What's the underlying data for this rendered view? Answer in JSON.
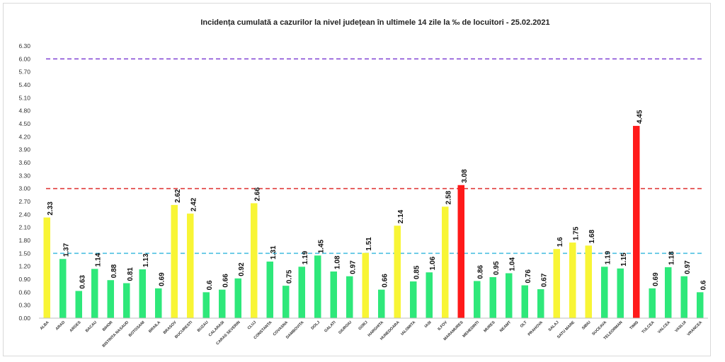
{
  "chart_data": {
    "type": "bar",
    "title": "Incidența cumulată a cazurilor la nivel județean în ultimele 14 zile   la ‰ de locuitori  - 25.02.2021",
    "xlabel": "",
    "ylabel": "",
    "ylim": [
      0,
      6.3
    ],
    "yticks": [
      "0.00",
      "0.30",
      "0.60",
      "0.90",
      "1.20",
      "1.50",
      "1.80",
      "2.10",
      "2.40",
      "2.70",
      "3.00",
      "3.30",
      "3.60",
      "3.90",
      "4.20",
      "4.50",
      "4.80",
      "5.10",
      "5.40",
      "5.70",
      "6.00",
      "6.30"
    ],
    "grid": false,
    "legend": "none",
    "categories": [
      "ALBA",
      "ARAD",
      "ARGES",
      "BACAU",
      "BIHOR",
      "BISTRITA NASAUD",
      "BOTOSANI",
      "BRAILA",
      "BRASOV",
      "BUCURESTI",
      "BUZAU",
      "CALARASI",
      "CARAS SEVERIN",
      "CLUJ",
      "CONSTANTA",
      "COVASNA",
      "DAMBOVITA",
      "DOLJ",
      "GALATI",
      "GIURGIU",
      "GORJ",
      "HARGHITA",
      "HUNEDOARA",
      "IALOMITA",
      "IASI",
      "ILFOV",
      "MARAMURES",
      "MEHEDINTI",
      "MURES",
      "NEAMT",
      "OLT",
      "PRAHOVA",
      "SALAJ",
      "SATU MARE",
      "SIBIU",
      "SUCEAVA",
      "TELEORMAN",
      "TIMIS",
      "TULCEA",
      "VALCEA",
      "VASLUI",
      "VRANCEA"
    ],
    "values": [
      2.33,
      1.37,
      0.63,
      1.14,
      0.88,
      0.81,
      1.13,
      0.69,
      2.62,
      2.42,
      0.6,
      0.66,
      0.92,
      2.66,
      1.31,
      0.75,
      1.19,
      1.45,
      1.08,
      0.97,
      1.51,
      0.66,
      2.14,
      0.85,
      1.06,
      2.58,
      3.08,
      0.86,
      0.95,
      1.04,
      0.76,
      0.67,
      1.6,
      1.75,
      1.68,
      1.19,
      1.15,
      4.45,
      0.69,
      1.18,
      0.97,
      0.6
    ],
    "value_labels": [
      "2.33",
      "1.37",
      "0.63",
      "1.14",
      "0.88",
      "0.81",
      "1.13",
      "0.69",
      "2.62",
      "2.42",
      "0.6",
      "0.66",
      "0.92",
      "2.66",
      "1.31",
      "0.75",
      "1.19",
      "1.45",
      "1.08",
      "0.97",
      "1.51",
      "0.66",
      "2.14",
      "0.85",
      "1.06",
      "2.58",
      "3.08",
      "0.86",
      "0.95",
      "1.04",
      "0.76",
      "0.67",
      "1.6",
      "1.75",
      "1.68",
      "1.19",
      "1.15",
      "4.45",
      "0.69",
      "1.18",
      "0.97",
      "0.6"
    ],
    "thresholds": [
      {
        "value": 1.5,
        "color": "#4bbfe0"
      },
      {
        "value": 3.0,
        "color": "#e03c3c"
      },
      {
        "value": 6.0,
        "color": "#8a4fd6"
      }
    ],
    "colors": {
      "low": "#2ee87a",
      "mid": "#f8f535",
      "high": "#ff1a1a"
    }
  }
}
